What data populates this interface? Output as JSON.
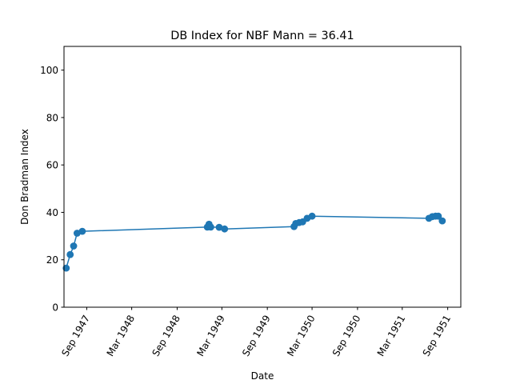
{
  "chart_data": {
    "type": "line",
    "title": "DB Index for NBF Mann = 36.41",
    "xlabel": "Date",
    "ylabel": "Don Bradman Index",
    "ylim": [
      0,
      110
    ],
    "yticks": [
      0,
      20,
      40,
      60,
      80,
      100
    ],
    "xlim": [
      "1947-06-01",
      "1951-10-24"
    ],
    "xticks": [
      {
        "date": "1947-09-01",
        "label": "Sep 1947"
      },
      {
        "date": "1948-03-01",
        "label": "Mar 1948"
      },
      {
        "date": "1948-09-01",
        "label": "Sep 1948"
      },
      {
        "date": "1949-03-01",
        "label": "Mar 1949"
      },
      {
        "date": "1949-09-01",
        "label": "Sep 1949"
      },
      {
        "date": "1950-03-01",
        "label": "Mar 1950"
      },
      {
        "date": "1950-09-01",
        "label": "Sep 1950"
      },
      {
        "date": "1951-03-01",
        "label": "Mar 1951"
      },
      {
        "date": "1951-09-01",
        "label": "Sep 1951"
      }
    ],
    "grid": false,
    "series": [
      {
        "color": "#1f77b4",
        "points": [
          {
            "x": "1947-06-10",
            "y": 16.5
          },
          {
            "x": "1947-06-26",
            "y": 22.2
          },
          {
            "x": "1947-07-10",
            "y": 25.8
          },
          {
            "x": "1947-07-24",
            "y": 31.2
          },
          {
            "x": "1947-08-14",
            "y": 32.0
          },
          {
            "x": "1949-01-01",
            "y": 33.8
          },
          {
            "x": "1949-01-08",
            "y": 35.0
          },
          {
            "x": "1949-01-15",
            "y": 33.8
          },
          {
            "x": "1949-02-18",
            "y": 33.7
          },
          {
            "x": "1949-03-12",
            "y": 33.0
          },
          {
            "x": "1949-12-18",
            "y": 34.0
          },
          {
            "x": "1949-12-25",
            "y": 35.3
          },
          {
            "x": "1950-01-08",
            "y": 35.7
          },
          {
            "x": "1950-01-22",
            "y": 36.0
          },
          {
            "x": "1950-02-09",
            "y": 37.5
          },
          {
            "x": "1950-03-01",
            "y": 38.4
          },
          {
            "x": "1951-06-17",
            "y": 37.5
          },
          {
            "x": "1951-07-01",
            "y": 38.2
          },
          {
            "x": "1951-07-14",
            "y": 38.4
          },
          {
            "x": "1951-07-25",
            "y": 38.4
          },
          {
            "x": "1951-08-10",
            "y": 36.4
          }
        ]
      }
    ]
  }
}
